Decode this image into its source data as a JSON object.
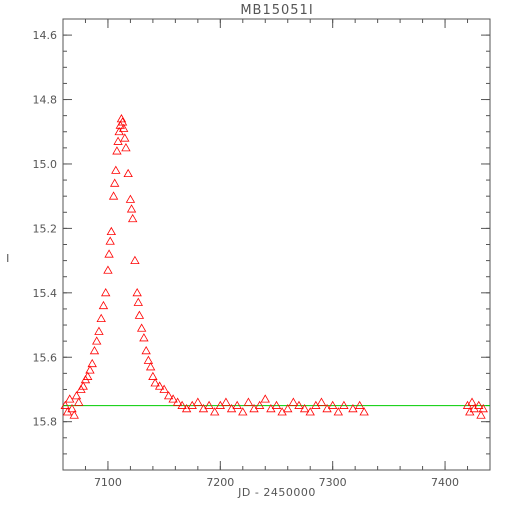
{
  "chart_data": {
    "type": "scatter",
    "title": "MB15051I",
    "xlabel": "JD - 2450000",
    "ylabel": "I",
    "xlim": [
      7060,
      7440
    ],
    "ylim": [
      15.95,
      14.55
    ],
    "y_inverted": true,
    "x_ticks": [
      "7100",
      "7200",
      "7300",
      "7400"
    ],
    "y_ticks": [
      "14.6",
      "14.8",
      "15.0",
      "15.2",
      "15.4",
      "15.6",
      "15.8"
    ],
    "grid": false,
    "marker": "open-triangle",
    "series": [
      {
        "color": "#ff0000",
        "points": [
          [
            7062,
            15.75
          ],
          [
            7064,
            15.77
          ],
          [
            7066,
            15.73
          ],
          [
            7068,
            15.76
          ],
          [
            7070,
            15.78
          ],
          [
            7072,
            15.72
          ],
          [
            7074,
            15.74
          ],
          [
            7076,
            15.7
          ],
          [
            7078,
            15.69
          ],
          [
            7080,
            15.67
          ],
          [
            7082,
            15.66
          ],
          [
            7084,
            15.64
          ],
          [
            7086,
            15.62
          ],
          [
            7088,
            15.58
          ],
          [
            7090,
            15.55
          ],
          [
            7092,
            15.52
          ],
          [
            7094,
            15.48
          ],
          [
            7096,
            15.44
          ],
          [
            7098,
            15.4
          ],
          [
            7100,
            15.33
          ],
          [
            7101,
            15.28
          ],
          [
            7102,
            15.24
          ],
          [
            7103,
            15.21
          ],
          [
            7105,
            15.1
          ],
          [
            7106,
            15.06
          ],
          [
            7107,
            15.02
          ],
          [
            7108,
            14.96
          ],
          [
            7109,
            14.93
          ],
          [
            7110,
            14.9
          ],
          [
            7111,
            14.88
          ],
          [
            7112,
            14.86
          ],
          [
            7113,
            14.87
          ],
          [
            7114,
            14.89
          ],
          [
            7115,
            14.92
          ],
          [
            7116,
            14.95
          ],
          [
            7118,
            15.03
          ],
          [
            7120,
            15.11
          ],
          [
            7121,
            15.14
          ],
          [
            7122,
            15.17
          ],
          [
            7124,
            15.3
          ],
          [
            7126,
            15.4
          ],
          [
            7127,
            15.43
          ],
          [
            7128,
            15.47
          ],
          [
            7130,
            15.51
          ],
          [
            7132,
            15.54
          ],
          [
            7134,
            15.58
          ],
          [
            7136,
            15.61
          ],
          [
            7138,
            15.63
          ],
          [
            7140,
            15.66
          ],
          [
            7142,
            15.68
          ],
          [
            7146,
            15.69
          ],
          [
            7150,
            15.7
          ],
          [
            7154,
            15.72
          ],
          [
            7158,
            15.73
          ],
          [
            7162,
            15.74
          ],
          [
            7166,
            15.75
          ],
          [
            7170,
            15.76
          ],
          [
            7175,
            15.75
          ],
          [
            7180,
            15.74
          ],
          [
            7185,
            15.76
          ],
          [
            7190,
            15.75
          ],
          [
            7195,
            15.77
          ],
          [
            7200,
            15.75
          ],
          [
            7205,
            15.74
          ],
          [
            7210,
            15.76
          ],
          [
            7215,
            15.75
          ],
          [
            7220,
            15.77
          ],
          [
            7225,
            15.74
          ],
          [
            7230,
            15.76
          ],
          [
            7235,
            15.75
          ],
          [
            7240,
            15.73
          ],
          [
            7245,
            15.76
          ],
          [
            7250,
            15.75
          ],
          [
            7255,
            15.77
          ],
          [
            7260,
            15.76
          ],
          [
            7265,
            15.74
          ],
          [
            7270,
            15.75
          ],
          [
            7275,
            15.76
          ],
          [
            7280,
            15.77
          ],
          [
            7285,
            15.75
          ],
          [
            7290,
            15.74
          ],
          [
            7295,
            15.76
          ],
          [
            7300,
            15.75
          ],
          [
            7305,
            15.77
          ],
          [
            7310,
            15.75
          ],
          [
            7318,
            15.76
          ],
          [
            7324,
            15.75
          ],
          [
            7328,
            15.77
          ],
          [
            7420,
            15.75
          ],
          [
            7422,
            15.77
          ],
          [
            7424,
            15.74
          ],
          [
            7426,
            15.76
          ],
          [
            7430,
            15.75
          ],
          [
            7432,
            15.78
          ],
          [
            7434,
            15.76
          ]
        ]
      }
    ],
    "baseline": {
      "value": 15.75,
      "color": "#00cc00"
    }
  }
}
